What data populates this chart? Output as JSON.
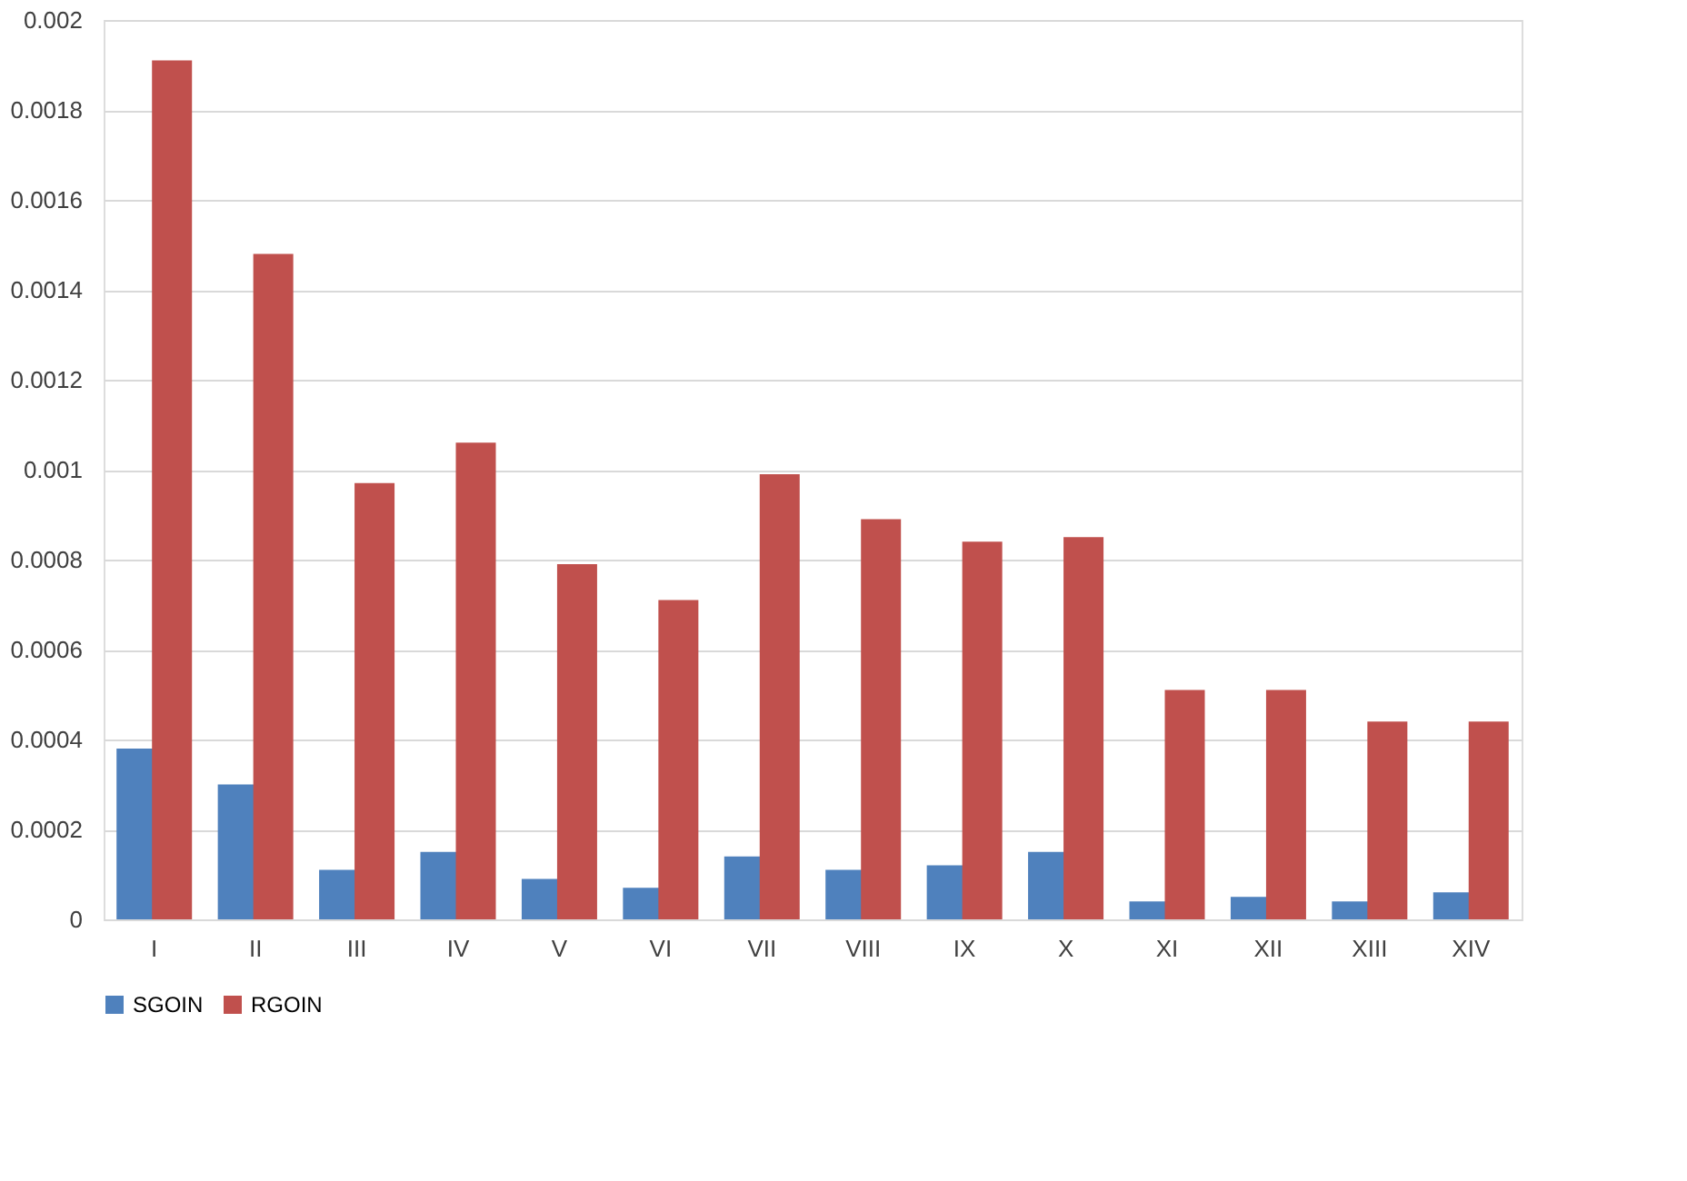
{
  "chart_data": {
    "type": "bar",
    "categories": [
      "I",
      "II",
      "III",
      "IV",
      "V",
      "VI",
      "VII",
      "VIII",
      "IX",
      "X",
      "XI",
      "XII",
      "XIII",
      "XIV"
    ],
    "series": [
      {
        "name": "SGOIN",
        "color": "#4f81bd",
        "values": [
          0.00038,
          0.0003,
          0.00011,
          0.00015,
          9e-05,
          7e-05,
          0.00014,
          0.00011,
          0.00012,
          0.00015,
          4e-05,
          5e-05,
          4e-05,
          6e-05
        ]
      },
      {
        "name": "RGOIN",
        "color": "#c0504d",
        "values": [
          0.00191,
          0.00148,
          0.00097,
          0.00106,
          0.00079,
          0.00071,
          0.00099,
          0.00089,
          0.00084,
          0.00085,
          0.00051,
          0.00051,
          0.00044,
          0.00044
        ]
      }
    ],
    "ylim": [
      0,
      0.002
    ],
    "yticks": [
      0,
      0.0002,
      0.0004,
      0.0006,
      0.0008,
      0.001,
      0.0012,
      0.0014,
      0.0016,
      0.0018,
      0.002
    ],
    "grid": "y",
    "legend": "bottom"
  }
}
